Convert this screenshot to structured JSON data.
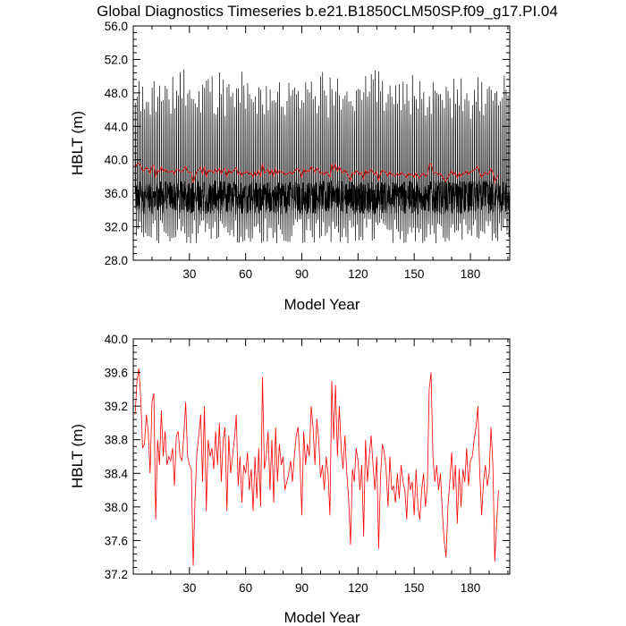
{
  "title": "Global Diagnostics Timeseries b.e21.B1850CLM50SP.f09_g17.PI.04",
  "chart_data": [
    {
      "type": "line",
      "xlabel": "Model Year",
      "ylabel": "HBLT (m)",
      "xlim": [
        0,
        201
      ],
      "ylim": [
        28.0,
        56.0
      ],
      "xticks": [
        30,
        60,
        90,
        120,
        150,
        180
      ],
      "yticks": [
        28.0,
        32.0,
        36.0,
        40.0,
        44.0,
        48.0,
        52.0,
        56.0
      ],
      "ytick_labels": [
        "28.0",
        "32.0",
        "36.0",
        "40.0",
        "44.0",
        "48.0",
        "52.0",
        "56.0"
      ],
      "grid": false,
      "series": [
        {
          "color": "#000000",
          "kind": "monthly",
          "annual_max_range": [
            47.5,
            51.0
          ],
          "annual_min_range": [
            30.0,
            33.0
          ],
          "typical_level": [
            33.5,
            37.5
          ]
        },
        {
          "color": "#ff0000",
          "kind": "annual",
          "values_ref": "annual_means"
        }
      ]
    },
    {
      "type": "line",
      "xlabel": "Model Year",
      "ylabel": "HBLT (m)",
      "xlim": [
        0,
        201
      ],
      "ylim": [
        37.2,
        40.0
      ],
      "xticks": [
        30,
        60,
        90,
        120,
        150,
        180
      ],
      "yticks": [
        37.2,
        37.6,
        38.0,
        38.4,
        38.8,
        39.2,
        39.6,
        40.0
      ],
      "ytick_labels": [
        "37.2",
        "37.6",
        "38.0",
        "38.4",
        "38.8",
        "39.2",
        "39.6",
        "40.0"
      ],
      "grid": false,
      "series": [
        {
          "color": "#ff0000",
          "values_ref": "annual_means"
        }
      ]
    }
  ],
  "annual_means": [
    39.1,
    39.5,
    39.65,
    39.3,
    38.7,
    38.75,
    39.1,
    38.9,
    38.4,
    39.25,
    39.35,
    37.85,
    38.8,
    38.5,
    39.15,
    38.6,
    38.9,
    38.5,
    38.6,
    38.55,
    38.7,
    38.25,
    38.85,
    38.9,
    38.6,
    38.55,
    38.85,
    39.25,
    38.6,
    38.5,
    38.45,
    37.3,
    38.1,
    38.65,
    38.85,
    39.1,
    38.3,
    39.2,
    37.95,
    38.8,
    38.6,
    38.7,
    38.45,
    38.9,
    38.5,
    39.0,
    38.3,
    38.8,
    38.95,
    37.95,
    38.85,
    38.4,
    38.6,
    38.8,
    39.1,
    38.25,
    38.6,
    38.05,
    38.5,
    38.4,
    38.65,
    38.2,
    38.45,
    37.95,
    38.6,
    38.1,
    38.7,
    38.0,
    39.55,
    38.45,
    38.6,
    38.9,
    38.2,
    38.8,
    38.05,
    38.95,
    38.3,
    38.75,
    38.5,
    38.6,
    38.2,
    38.3,
    38.4,
    38.55,
    38.3,
    38.6,
    38.85,
    38.95,
    38.55,
    37.9,
    38.9,
    38.5,
    38.75,
    38.6,
    39.2,
    38.95,
    38.5,
    39.05,
    38.8,
    38.35,
    38.5,
    38.2,
    38.6,
    38.4,
    37.9,
    39.5,
    38.8,
    39.45,
    38.6,
    39.2,
    38.7,
    38.45,
    38.85,
    38.4,
    38.1,
    37.55,
    38.45,
    38.3,
    38.7,
    38.55,
    38.2,
    38.5,
    37.65,
    38.8,
    38.3,
    38.6,
    38.85,
    38.5,
    38.2,
    38.6,
    37.5,
    38.35,
    38.75,
    38.65,
    38.45,
    38.0,
    38.6,
    38.2,
    38.25,
    38.05,
    38.4,
    38.1,
    38.5,
    38.3,
    38.2,
    37.85,
    38.4,
    38.2,
    38.3,
    37.9,
    38.45,
    38.0,
    37.85,
    38.2,
    38.4,
    38.0,
    38.25,
    39.4,
    39.6,
    38.6,
    38.3,
    38.5,
    38.2,
    38.4,
    37.95,
    37.6,
    37.4,
    38.0,
    38.3,
    38.65,
    38.2,
    38.5,
    37.8,
    38.45,
    38.0,
    38.45,
    38.3,
    38.7,
    38.25,
    38.55,
    38.6,
    38.8,
    38.95,
    39.2,
    38.4,
    37.9,
    38.3,
    38.5,
    38.25,
    38.4,
    38.95,
    38.5,
    37.35,
    37.8,
    38.2
  ]
}
